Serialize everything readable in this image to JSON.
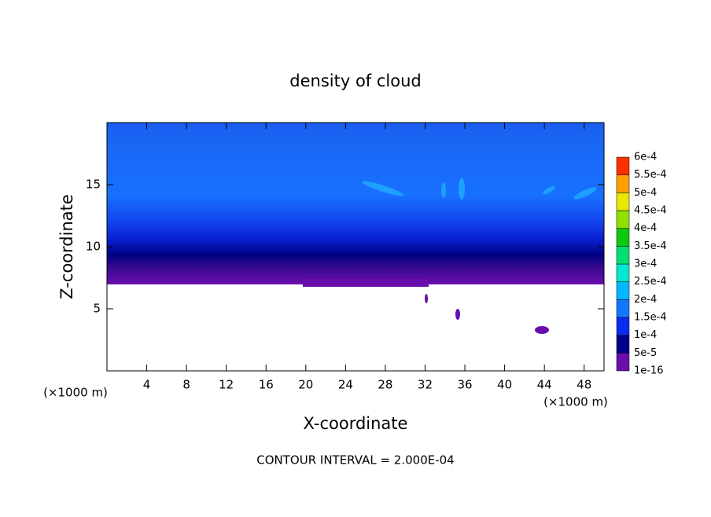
{
  "chart_data": {
    "type": "contour",
    "title": "density of cloud",
    "xlabel": "X-coordinate",
    "ylabel": "Z-coordinate",
    "x_unit": "(×1000 m)",
    "y_unit": "(×1000 m)",
    "footer": "CONTOUR INTERVAL = 2.000E-04",
    "xlim": [
      0,
      50
    ],
    "ylim": [
      0,
      20
    ],
    "xticks": [
      4,
      8,
      12,
      16,
      20,
      24,
      28,
      32,
      36,
      40,
      44,
      48
    ],
    "yticks": [
      5,
      10,
      15
    ],
    "colorbar": {
      "levels": [
        {
          "value": 1e-16,
          "label": "1e-16"
        },
        {
          "value": 5e-05,
          "label": "5e-5"
        },
        {
          "value": 0.0001,
          "label": "1e-4"
        },
        {
          "value": 0.00015,
          "label": "1.5e-4"
        },
        {
          "value": 0.0002,
          "label": "2e-4"
        },
        {
          "value": 0.00025,
          "label": "2.5e-4"
        },
        {
          "value": 0.0003,
          "label": "3e-4"
        },
        {
          "value": 0.00035,
          "label": "3.5e-4"
        },
        {
          "value": 0.0004,
          "label": "4e-4"
        },
        {
          "value": 0.00045,
          "label": "4.5e-4"
        },
        {
          "value": 0.0005,
          "label": "5e-4"
        },
        {
          "value": 0.00055,
          "label": "5.5e-4"
        },
        {
          "value": 0.0006,
          "label": "6e-4"
        }
      ],
      "colors": [
        "#6a0dad",
        "#00008b",
        "#0a2cf0",
        "#1478ff",
        "#00b8ff",
        "#00e8d0",
        "#00e070",
        "#10c810",
        "#90e000",
        "#e8e800",
        "#ffa000",
        "#ff3000",
        "#ff8080"
      ]
    }
  }
}
